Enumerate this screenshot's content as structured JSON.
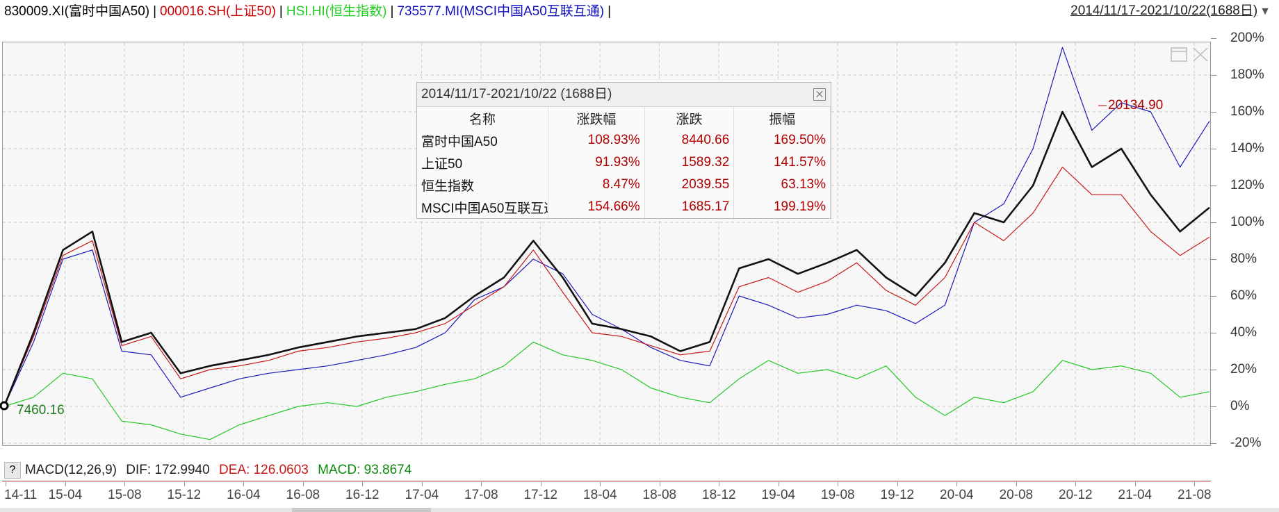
{
  "header": {
    "legend": [
      {
        "text": "830009.XI(富时中国A50)",
        "color": "#000000"
      },
      {
        "text": "000016.SH(上证50)",
        "color": "#cc0000"
      },
      {
        "text": "HSI.HI(恒生指数)",
        "color": "#22cc22"
      },
      {
        "text": "735577.MI(MSCI中国A50互联互通)",
        "color": "#1010c0"
      }
    ],
    "separator": "|",
    "range_label": "2014/11/17-2021/10/22(1688日)",
    "range_arrow": "▼"
  },
  "popup": {
    "title": "2014/11/17-2021/10/22 (1688日)",
    "columns": [
      "名称",
      "涨跌幅",
      "涨跌",
      "振幅"
    ],
    "rows": [
      {
        "name": "富时中国A50",
        "pct": "108.93%",
        "chg": "8440.66",
        "amp": "169.50%"
      },
      {
        "name": "上证50",
        "pct": "91.93%",
        "chg": "1589.32",
        "amp": "141.57%"
      },
      {
        "name": "恒生指数",
        "pct": "8.47%",
        "chg": "2039.55",
        "amp": "63.13%"
      },
      {
        "name": "MSCI中国A50互联互通",
        "pct": "154.66%",
        "chg": "1685.17",
        "amp": "199.19%"
      }
    ]
  },
  "annotations": {
    "start_value": "7460.16",
    "end_value": "20134.90"
  },
  "macd": {
    "label": "MACD(12,26,9)",
    "dif": "DIF: 172.9940",
    "dea": "DEA: 126.0603",
    "macd": "MACD: 93.8674",
    "help": "?"
  },
  "colors": {
    "a50": "#111111",
    "sz50": "#c81818",
    "hsi": "#22c822",
    "msci": "#1a1ab8",
    "dea": "#c81818",
    "macd": "#0b8a0b"
  },
  "chart_data": {
    "type": "line",
    "ylabel": "",
    "xlabel": "",
    "ylim": [
      -20,
      200
    ],
    "yticks": [
      "200%",
      "180%",
      "160%",
      "140%",
      "120%",
      "100%",
      "80%",
      "60%",
      "40%",
      "20%",
      "0%",
      "-20%"
    ],
    "xticks": [
      "14-11",
      "15-04",
      "15-08",
      "15-12",
      "16-04",
      "16-08",
      "16-12",
      "17-04",
      "17-08",
      "17-12",
      "18-04",
      "18-08",
      "18-12",
      "19-04",
      "19-08",
      "19-12",
      "20-04",
      "20-08",
      "20-12",
      "21-04",
      "21-08"
    ],
    "x": [
      "14-11",
      "15-02",
      "15-04",
      "15-06",
      "15-08",
      "15-10",
      "15-12",
      "16-02",
      "16-04",
      "16-06",
      "16-08",
      "16-10",
      "16-12",
      "17-02",
      "17-04",
      "17-06",
      "17-08",
      "17-10",
      "17-12",
      "18-02",
      "18-04",
      "18-06",
      "18-08",
      "18-10",
      "18-12",
      "19-02",
      "19-04",
      "19-06",
      "19-08",
      "19-10",
      "19-12",
      "20-02",
      "20-04",
      "20-06",
      "20-08",
      "20-10",
      "20-12",
      "21-02",
      "21-04",
      "21-06",
      "21-08",
      "21-10"
    ],
    "series": [
      {
        "name": "富时中国A50",
        "values": [
          0,
          40,
          85,
          95,
          35,
          40,
          18,
          22,
          25,
          28,
          32,
          35,
          38,
          40,
          42,
          48,
          60,
          70,
          90,
          70,
          45,
          42,
          38,
          30,
          35,
          75,
          80,
          72,
          78,
          85,
          70,
          60,
          78,
          105,
          100,
          120,
          160,
          130,
          140,
          115,
          95,
          108
        ]
      },
      {
        "name": "上证50",
        "values": [
          0,
          38,
          82,
          90,
          33,
          38,
          15,
          20,
          22,
          25,
          30,
          32,
          35,
          37,
          40,
          45,
          55,
          65,
          85,
          62,
          40,
          38,
          33,
          28,
          30,
          65,
          70,
          62,
          68,
          78,
          63,
          55,
          70,
          100,
          90,
          105,
          130,
          115,
          115,
          95,
          82,
          92
        ]
      },
      {
        "name": "恒生指数",
        "values": [
          0,
          5,
          18,
          15,
          -8,
          -10,
          -15,
          -18,
          -10,
          -5,
          0,
          2,
          0,
          5,
          8,
          12,
          15,
          22,
          35,
          28,
          25,
          20,
          10,
          5,
          2,
          15,
          25,
          18,
          20,
          15,
          22,
          5,
          -5,
          5,
          2,
          8,
          25,
          20,
          22,
          18,
          5,
          8
        ]
      },
      {
        "name": "MSCI中国A50互联互通",
        "values": [
          0,
          35,
          80,
          85,
          30,
          28,
          5,
          10,
          15,
          18,
          20,
          22,
          25,
          28,
          32,
          40,
          58,
          65,
          80,
          72,
          50,
          42,
          32,
          25,
          22,
          60,
          55,
          48,
          50,
          55,
          52,
          45,
          55,
          100,
          110,
          140,
          195,
          150,
          165,
          160,
          130,
          155
        ]
      }
    ]
  }
}
